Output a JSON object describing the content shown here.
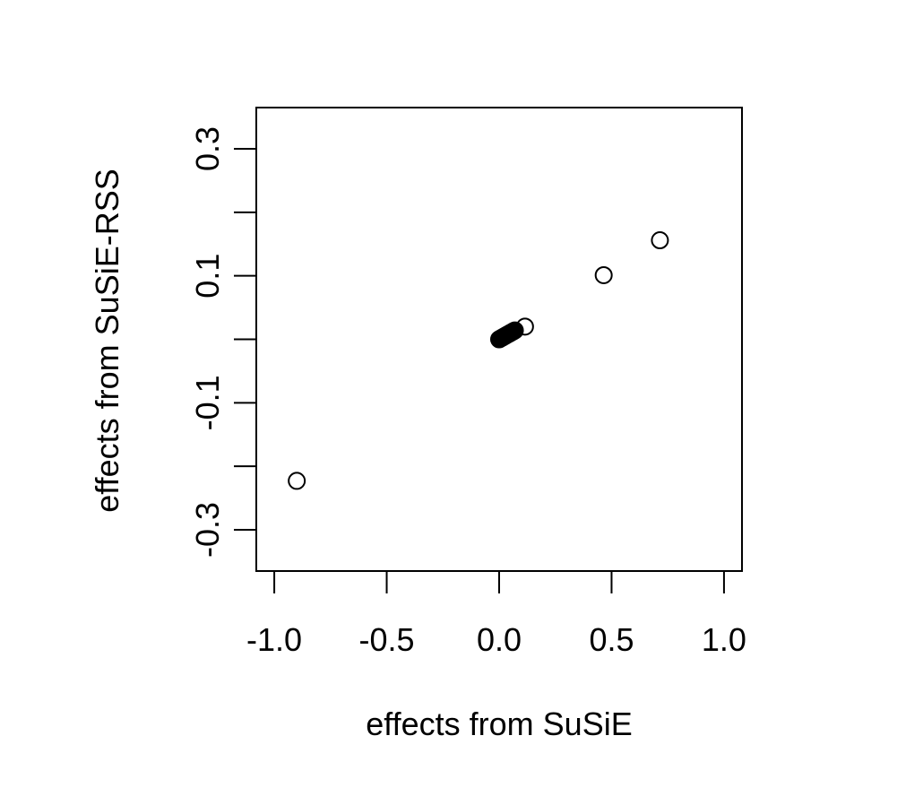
{
  "chart_data": {
    "type": "scatter",
    "title": "",
    "xlabel": "effects from SuSiE",
    "ylabel": "effects from SuSiE-RSS",
    "xlim": [
      -1.08,
      1.08
    ],
    "ylim": [
      -0.365,
      0.365
    ],
    "x_ticks": [
      -1.0,
      -0.5,
      0.0,
      0.5,
      1.0
    ],
    "x_tick_labels": [
      "-1.0",
      "-0.5",
      "0.0",
      "0.5",
      "1.0"
    ],
    "y_ticks": [
      -0.3,
      -0.2,
      -0.1,
      0.0,
      0.1,
      0.2,
      0.3
    ],
    "y_tick_labels": [
      "-0.3",
      "",
      "-0.1",
      "",
      "0.1",
      "",
      "0.3"
    ],
    "grid": false,
    "legend": "none",
    "marker": "open-circle",
    "points": [
      {
        "x": -0.9,
        "y": -0.223
      },
      {
        "x": 0.0,
        "y": 0.0
      },
      {
        "x": 0.005,
        "y": 0.001
      },
      {
        "x": 0.01,
        "y": 0.002
      },
      {
        "x": 0.015,
        "y": 0.003
      },
      {
        "x": 0.02,
        "y": 0.004
      },
      {
        "x": 0.025,
        "y": 0.005
      },
      {
        "x": 0.03,
        "y": 0.006
      },
      {
        "x": 0.035,
        "y": 0.007
      },
      {
        "x": 0.04,
        "y": 0.008
      },
      {
        "x": 0.045,
        "y": 0.009
      },
      {
        "x": 0.05,
        "y": 0.01
      },
      {
        "x": 0.055,
        "y": 0.011
      },
      {
        "x": 0.06,
        "y": 0.012
      },
      {
        "x": 0.065,
        "y": 0.013
      },
      {
        "x": 0.07,
        "y": 0.014
      },
      {
        "x": 0.115,
        "y": 0.02
      },
      {
        "x": 0.465,
        "y": 0.101
      },
      {
        "x": 0.715,
        "y": 0.156
      }
    ],
    "colors": {
      "axis": "#000000",
      "marker_stroke": "#000000",
      "marker_fill": "none",
      "background": "#ffffff"
    }
  }
}
